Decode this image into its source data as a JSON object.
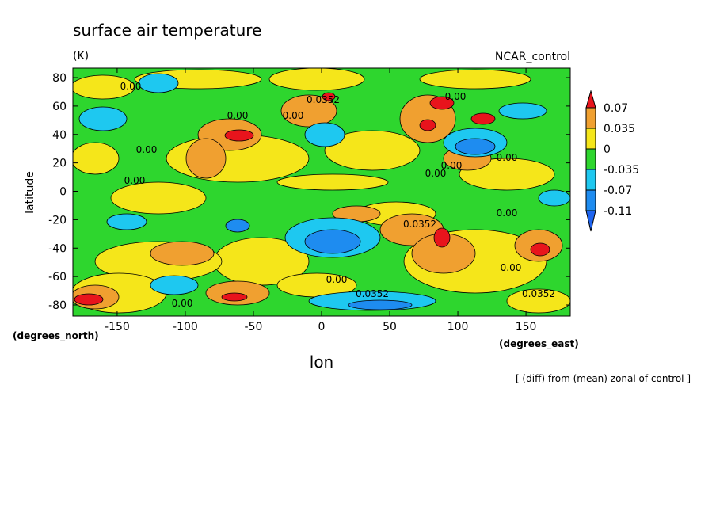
{
  "chart_data": {
    "type": "contour",
    "title": "surface air temperature",
    "subtitle": "(K)",
    "source": "NCAR_control",
    "xlabel": "lon",
    "ylabel": "latitude",
    "x_units": "(degrees_east)",
    "y_units": "(degrees_north)",
    "note": "[ (diff) from (mean) zonal of control ]",
    "xlim": [
      -182.5,
      182.5
    ],
    "ylim": [
      -87.8,
      86.7
    ],
    "xticks": [
      -150,
      -100,
      -50,
      0,
      50,
      100,
      150
    ],
    "yticks": [
      -80,
      -60,
      -40,
      -20,
      0,
      20,
      40,
      60,
      80
    ],
    "colorbar": {
      "levels": [
        0.07,
        0.035,
        0,
        -0.035,
        -0.07,
        -0.11
      ],
      "colors": [
        "#e8141c",
        "#f0a030",
        "#f5e61a",
        "#2ed62e",
        "#1ec8f0",
        "#1e8cf0",
        "#1e64f0"
      ]
    },
    "contour_labels": [
      "0.00",
      "0.0352",
      "0.00",
      "0.00",
      "0.00",
      "0.00",
      "0.00",
      "0.00",
      "0.00",
      "0.00",
      "0.00",
      "0.0352",
      "0.00",
      "0.0352",
      "0.00",
      "0.0352",
      "0.00"
    ]
  }
}
